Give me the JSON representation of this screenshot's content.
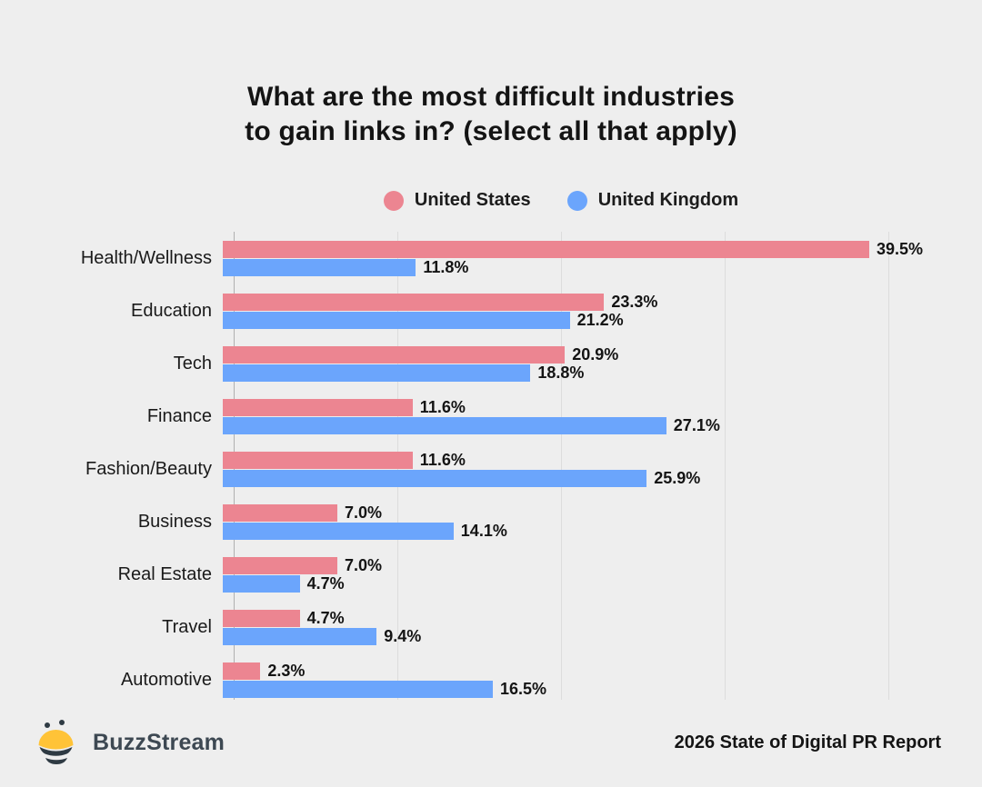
{
  "background": "#eeeeee",
  "title": {
    "line1": "What are the most difficult industries",
    "line2": "to gain links in? (select all that apply)"
  },
  "legend": [
    {
      "label": "United States",
      "color": "#ec8591"
    },
    {
      "label": "United Kingdom",
      "color": "#6ba5fc"
    }
  ],
  "chart_data": {
    "type": "bar",
    "orientation": "horizontal",
    "title": "What are the most difficult industries to gain links in? (select all that apply)",
    "categories": [
      "Health/Wellness",
      "Education",
      "Tech",
      "Finance",
      "Fashion/Beauty",
      "Business",
      "Real Estate",
      "Travel",
      "Automotive"
    ],
    "series": [
      {
        "name": "United States",
        "color": "#ec8591",
        "values": [
          39.5,
          23.3,
          20.9,
          11.6,
          11.6,
          7.0,
          7.0,
          4.7,
          2.3
        ]
      },
      {
        "name": "United Kingdom",
        "color": "#6ba5fc",
        "values": [
          11.8,
          21.2,
          18.8,
          27.1,
          25.9,
          14.1,
          4.7,
          9.4,
          16.5
        ]
      }
    ],
    "value_suffix": "%",
    "value_decimals": 1,
    "xlim": [
      0,
      40
    ],
    "gridline_values": [
      0,
      10,
      20,
      30,
      40
    ],
    "grid": true,
    "legend_position": "top",
    "colors": {
      "gridline": "#dcdcdc",
      "axis_line": "#b0b0b0",
      "value_text": "#141414"
    }
  },
  "footer": {
    "brand": "BuzzStream",
    "report": "2026 State of Digital PR Report",
    "bee_yellow": "#ffc337",
    "bee_dark": "#2e3a43"
  }
}
